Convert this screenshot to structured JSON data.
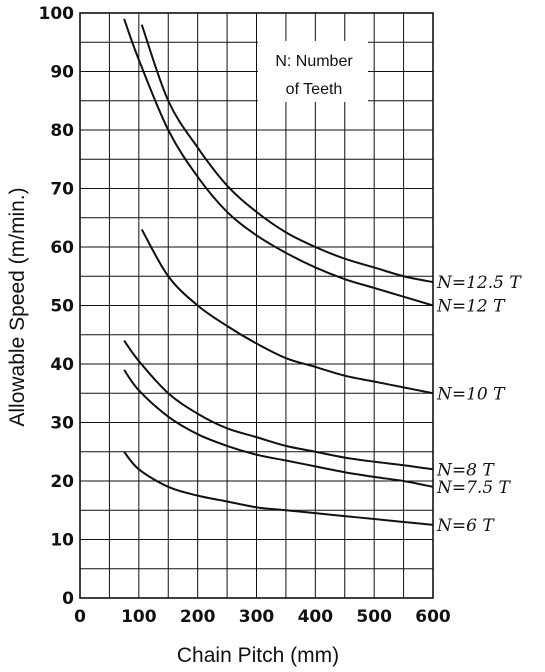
{
  "chart_data": {
    "type": "line",
    "xlabel": "Chain Pitch (mm)",
    "ylabel": "Allowable Speed (m/min.)",
    "xlim": [
      0,
      600
    ],
    "ylim": [
      0,
      100
    ],
    "x_ticks": [
      0,
      100,
      200,
      300,
      400,
      500,
      600
    ],
    "y_ticks": [
      0,
      10,
      20,
      30,
      40,
      50,
      60,
      70,
      80,
      90,
      100
    ],
    "x_grid_step": 50,
    "y_grid_step": 5,
    "grid": true,
    "annotation": [
      "N: Number",
      "of Teeth"
    ],
    "series": [
      {
        "name": "N=12.5 T",
        "x": [
          105,
          150,
          200,
          250,
          300,
          350,
          400,
          450,
          500,
          550,
          600
        ],
        "y": [
          98,
          85,
          77,
          70.5,
          66,
          62.5,
          60,
          58,
          56.5,
          55,
          54
        ]
      },
      {
        "name": "N=12 T",
        "x": [
          75,
          100,
          150,
          200,
          250,
          300,
          350,
          400,
          450,
          500,
          550,
          600
        ],
        "y": [
          99,
          92,
          80,
          72,
          66,
          62,
          59,
          56.5,
          54.5,
          53,
          51.5,
          50
        ]
      },
      {
        "name": "N=10 T",
        "x": [
          105,
          150,
          200,
          250,
          300,
          350,
          400,
          450,
          500,
          550,
          600
        ],
        "y": [
          63,
          55,
          50,
          46.5,
          43.5,
          41,
          39.5,
          38,
          37,
          36,
          35
        ]
      },
      {
        "name": "N=8 T",
        "x": [
          75,
          100,
          150,
          200,
          250,
          300,
          350,
          400,
          450,
          500,
          550,
          600
        ],
        "y": [
          44,
          40.5,
          35,
          31.5,
          29,
          27.5,
          26,
          25,
          24,
          23.3,
          22.7,
          22
        ]
      },
      {
        "name": "N=7.5 T",
        "x": [
          75,
          100,
          150,
          200,
          250,
          300,
          350,
          400,
          450,
          500,
          550,
          600
        ],
        "y": [
          39,
          35.5,
          31,
          28,
          26,
          24.5,
          23.5,
          22.5,
          21.5,
          20.7,
          20,
          19
        ]
      },
      {
        "name": "N=6 T",
        "x": [
          75,
          100,
          150,
          200,
          250,
          300,
          350,
          400,
          450,
          500,
          550,
          600
        ],
        "y": [
          25,
          22,
          19,
          17.5,
          16.5,
          15.5,
          15,
          14.5,
          14,
          13.5,
          13,
          12.5
        ]
      }
    ]
  }
}
